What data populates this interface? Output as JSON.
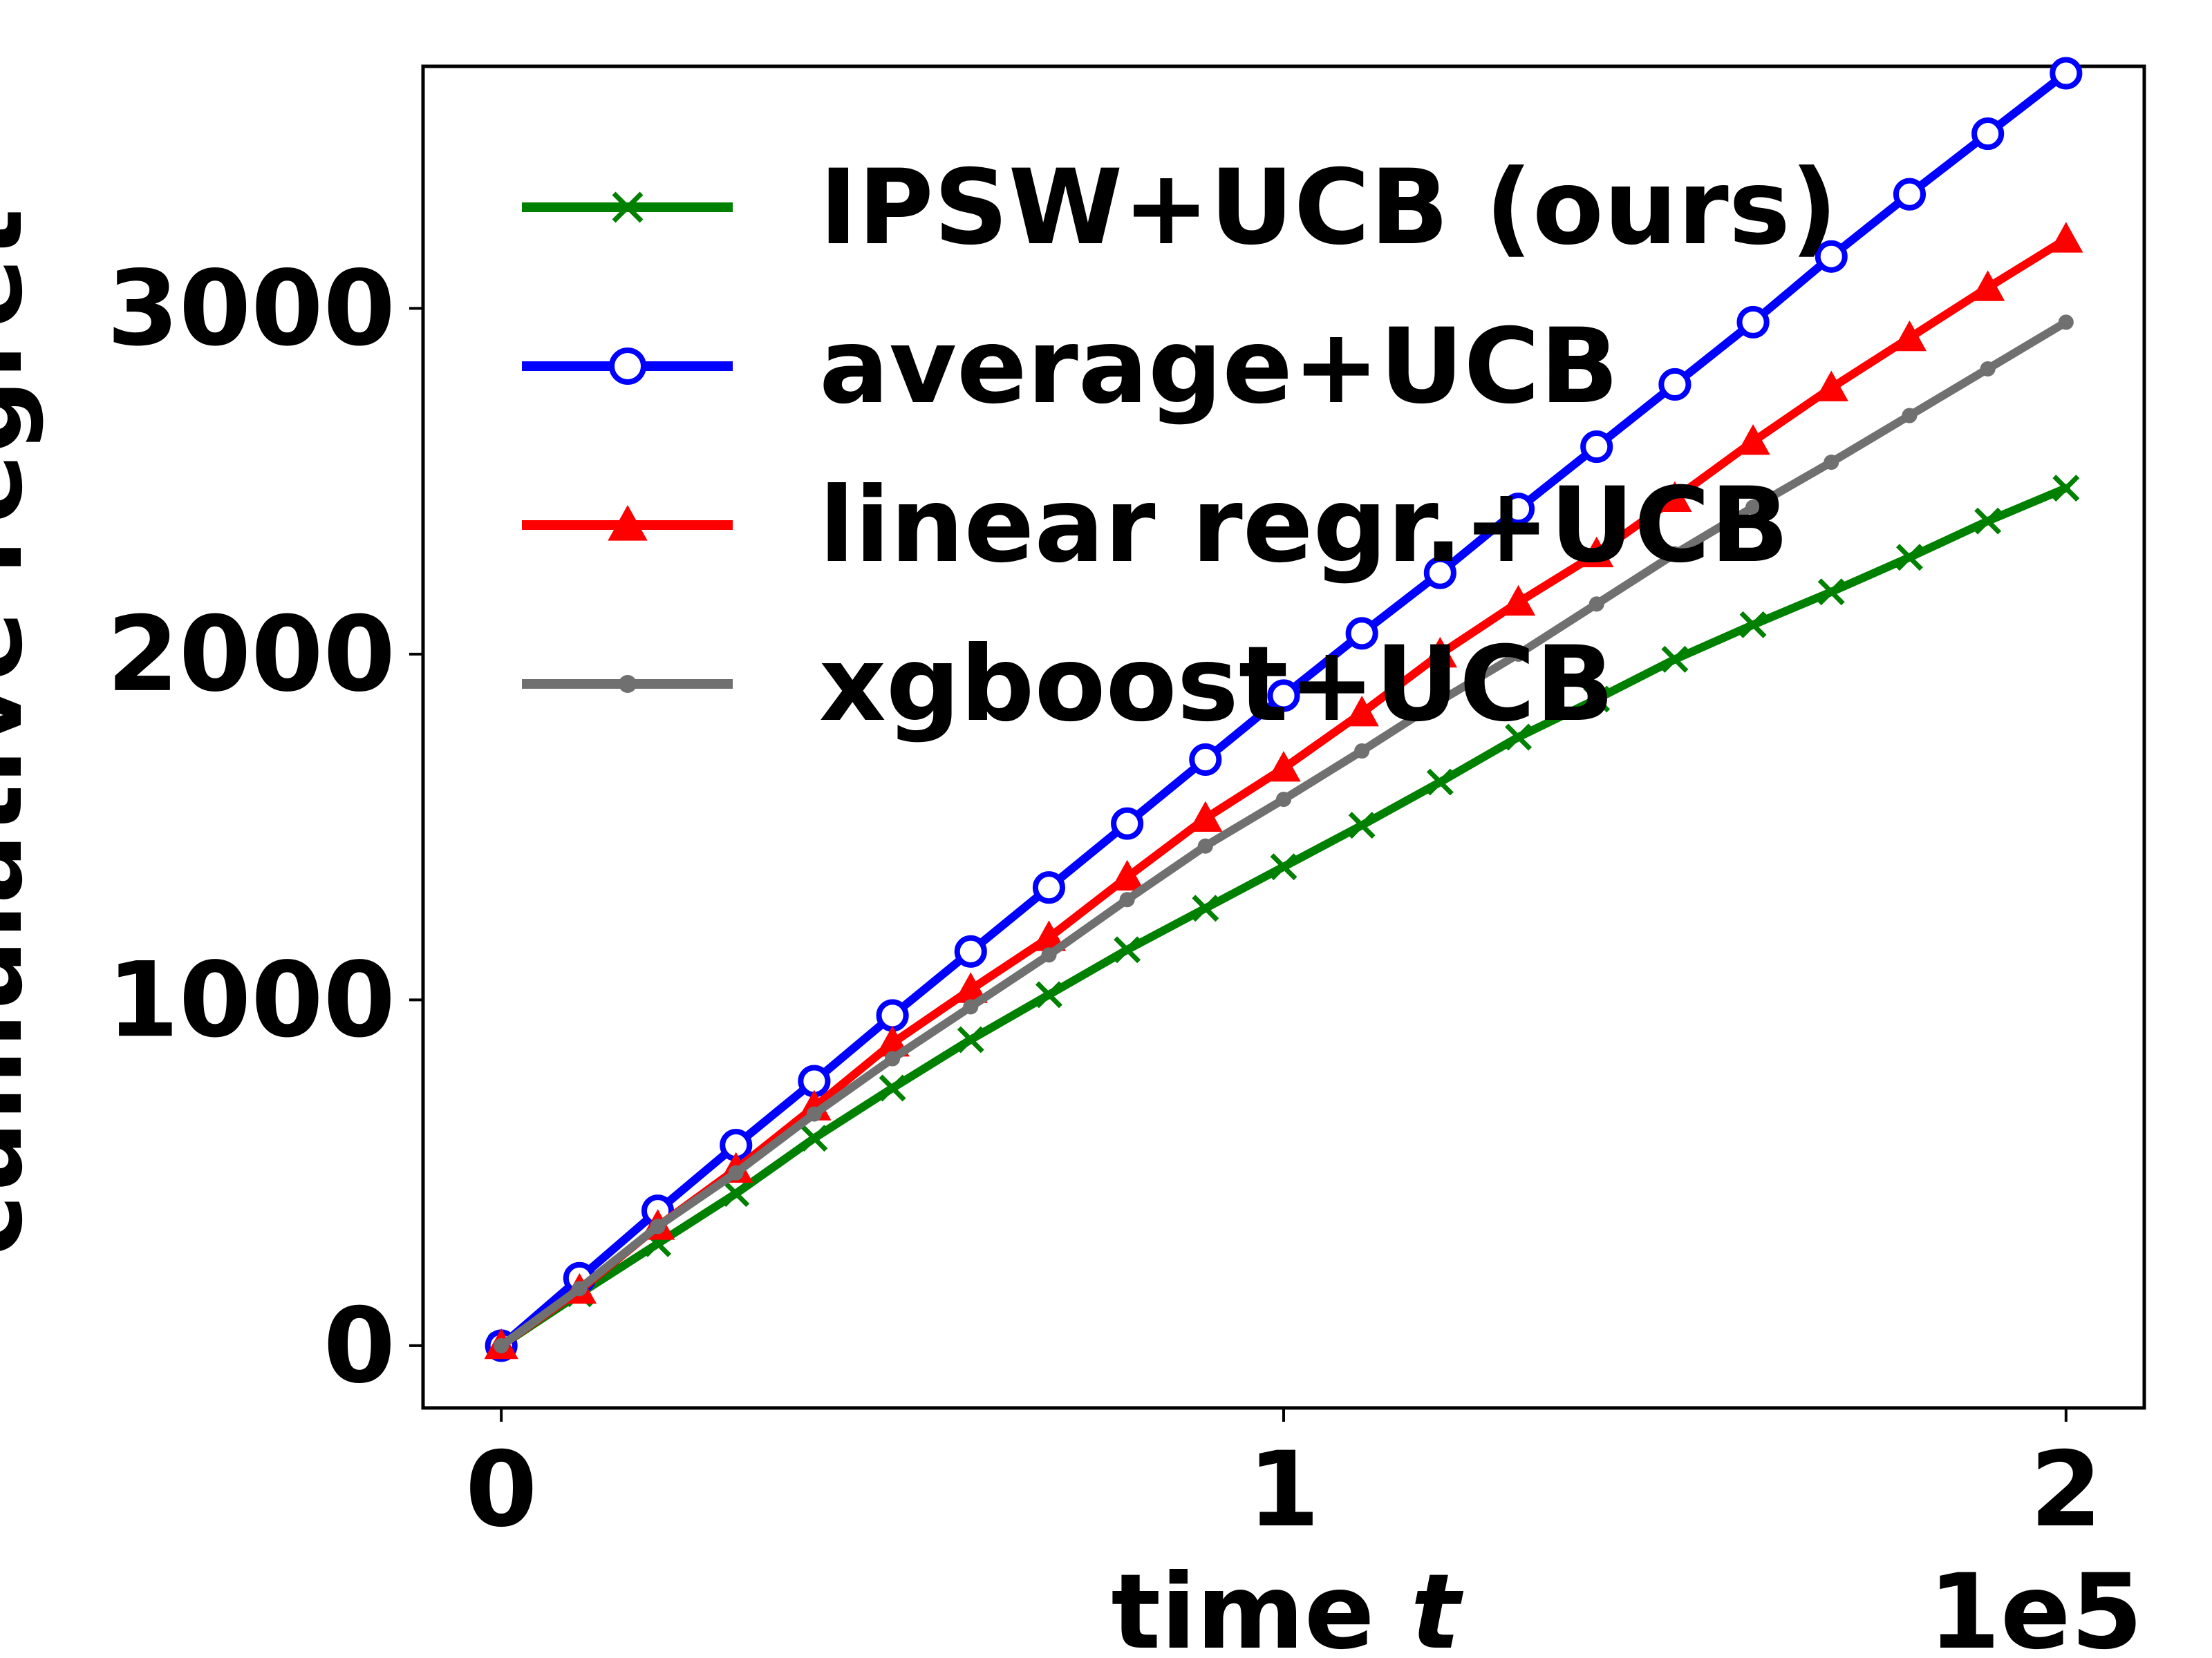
{
  "chart_data": {
    "type": "line",
    "xlabel": "time",
    "xlabel_var": "t",
    "ylabel": "cumulative regret",
    "x_offset_label": "1e5",
    "xlim": [
      -0.1,
      2.1
    ],
    "ylim": [
      -180,
      3700
    ],
    "xticks": [
      0,
      1,
      2
    ],
    "xtick_labels": [
      "0",
      "1",
      "2"
    ],
    "yticks": [
      0,
      1000,
      2000,
      3000
    ],
    "ytick_labels": [
      "0",
      "1000",
      "2000",
      "3000"
    ],
    "grid": false,
    "legend_position": "upper-left",
    "x": [
      0,
      0.1,
      0.2,
      0.3,
      0.4,
      0.5,
      0.6,
      0.7,
      0.8,
      0.9,
      1.0,
      1.1,
      1.2,
      1.3,
      1.4,
      1.5,
      1.6,
      1.7,
      1.8,
      1.9,
      2.0
    ],
    "series": [
      {
        "name": "IPSW+UCB (ours)",
        "color": "#008000",
        "marker": "x",
        "values": [
          0,
          150,
          295,
          440,
          600,
          745,
          885,
          1015,
          1145,
          1265,
          1385,
          1505,
          1630,
          1760,
          1870,
          1985,
          2085,
          2180,
          2280,
          2385,
          2480
        ]
      },
      {
        "name": "average+UCB",
        "color": "#0000ff",
        "marker": "circle",
        "values": [
          0,
          195,
          390,
          580,
          765,
          955,
          1140,
          1325,
          1510,
          1695,
          1880,
          2060,
          2235,
          2420,
          2600,
          2780,
          2960,
          3150,
          3330,
          3505,
          3680
        ]
      },
      {
        "name": "linear regr.+UCB",
        "color": "#ff0000",
        "marker": "triangle",
        "values": [
          0,
          160,
          345,
          510,
          690,
          875,
          1030,
          1180,
          1355,
          1525,
          1670,
          1830,
          2000,
          2150,
          2290,
          2450,
          2615,
          2770,
          2915,
          3060,
          3200
        ]
      },
      {
        "name": "xgboost+UCB",
        "color": "#707070",
        "marker": "dot",
        "values": [
          0,
          165,
          345,
          500,
          670,
          830,
          980,
          1130,
          1290,
          1445,
          1580,
          1720,
          1865,
          2000,
          2145,
          2290,
          2425,
          2555,
          2690,
          2825,
          2960
        ]
      }
    ]
  }
}
